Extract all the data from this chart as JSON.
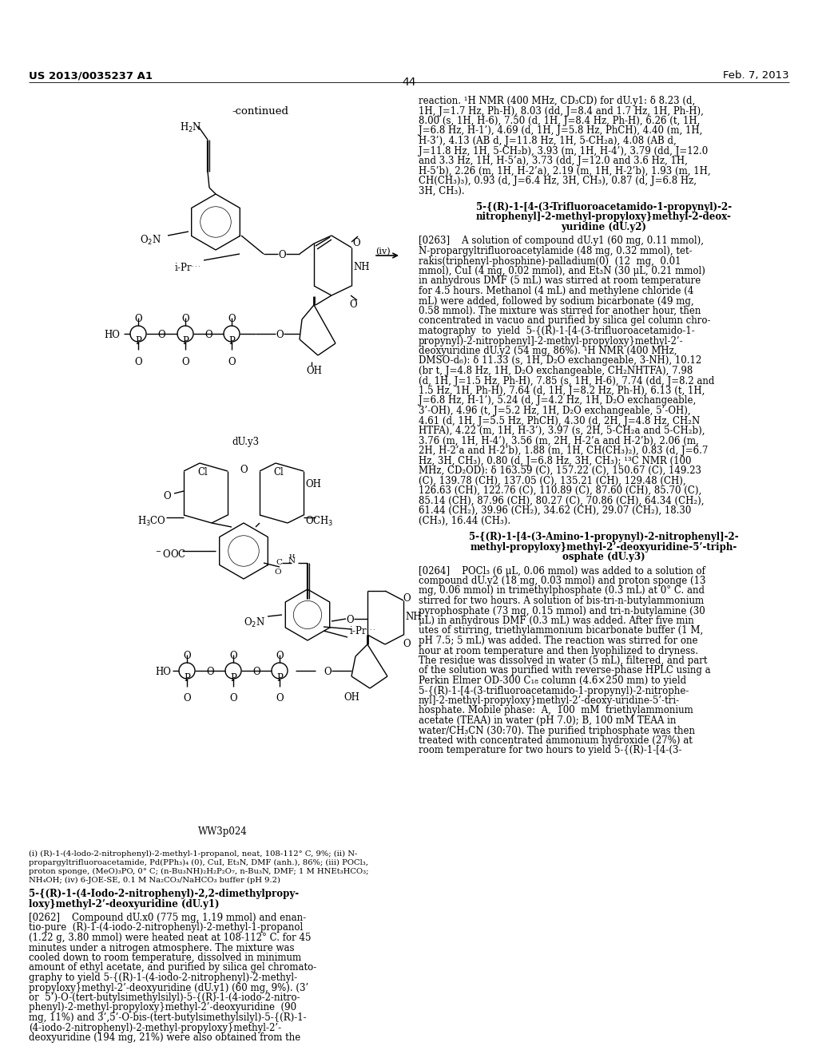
{
  "page_header_left": "US 2013/0035237 A1",
  "page_header_right": "Feb. 7, 2013",
  "page_number": "44",
  "continued_label": "-continued",
  "reaction_arrow_label": "(iv)",
  "compound_label_duy3": "dU.y3",
  "compound_label_ww3p024": "WW3p024",
  "footnote_line1": "(i) (R)-1-(4-lodo-2-nitrophenyl)-2-methyl-1-propanol, neat, 108-112° C, 9%; (ii) N-",
  "footnote_line2": "propargyltrifluoroacetamide, Pd(PPh₃)₄ (0), CuI, Et₃N, DMF (anh.), 86%; (iii) POCl₃,",
  "footnote_line3": "proton sponge, (MeO)₃PO, 0° C; (n-Bu₃NH)₂H₂P₂O₇, n-Bu₃N, DMF; 1 M HNEt₃HCO₃;",
  "footnote_line4": "NH₄OH; (iv) 6-JOE-SE, 0.1 M Na₂CO₃/NaHCO₃ buffer (pH 9.2)",
  "left_section_title": "5-{(R)-1-(4-Iodo-2-nitrophenyl)-2,2-dimethylpropy-\nloxy}methyl-2’-deoxyuridine (dU.y1)",
  "left_para_0262_start": "[0262]",
  "right_col_text_top": "reaction. ¹H NMR (400 MHz, CD₃CD) for dU.y1: δ 8.23 (d, 1H, J=1.7 Hz, Ph-H), 8.03 (dd, J=8.4 and 1.7 Hz, 1H, Ph-H), 8.00 (s, 1H, H-6), 7.50 (d, 1H, J=8.4 Hz, Ph-H), 6.26 (t, 1H, J=6.8 Hz, H-1’), 4.69 (d, 1H, J=5.8 Hz, PhCH), 4.40 (m, 1H, H-3’), 4.13 (AB d, J=11.8 Hz, 1H, 5-CH₂a), 4.08 (AB d, J=11.8 Hz, 1H, 5-CH₂b), 3.93 (m, 1H, H-4’), 3.79 (dd, J=12.0 and 3.3 Hz, 1H, H-5’a), 3.73 (dd, J=12.0 and 3.6 Hz, 1H, H-5’b), 2.26 (m, 1H, H-2’a), 2.19 (m, 1H, H-2’b), 1.93 (m, 1H, CH(CH₃)₃), 0.93 (d, J=6.4 Hz, 3H, CH₃), 0.87 (d, J=6.8 Hz, 3H, CH₃).",
  "right_section_title_1a": "5-{(R)-1-[4-(3-Trifluoroacetamido-1-propynyl)-2-",
  "right_section_title_1b": "nitrophenyl]-2-methyl-propyloxy}methyl-2-deox-",
  "right_section_title_1c": "yuridine (dU.y2)",
  "right_para_0263": "[0263]    A solution of compound dU.y1 (60 mg, 0.11 mmol), N-propargyltrifluoroacetylamide (48 mg, 0.32 mmol), tet-rakis(triphenyl-phosphine)-palladium(0)  (12  mg,  0.01 mmol), CuI (4 mg, 0.02 mmol), and Et₃N (30 μL, 0.21 mmol) in anhydrous DMF (5 mL) was stirred at room temperature for 4.5 hours. Methanol (4 mL) and methylene chloride (4 mL) were added, followed by sodium bicarbonate (49 mg, 0.58 mmol). The mixture was stirred for another hour, then concentrated in vacuo and purified by silica gel column chro-matography  to  yield  5-{(R)-1-[4-(3-trifluoroacetamido-1-propynyl)-2-nitrophenyl]-2-methyl-propyloxy}methyl-2’-deoxyuridine dU.y2 (54 mg, 86%). ¹H NMR (400 MHz, DMSO-d₆): δ 11.33 (s, 1H, D₂O exchangeable, 3-NH), 10.12 (br t, J=4.8 Hz, 1H, D₂O exchangeable, CH₂NHTFA), 7.98 (d, 1H, J=1.5 Hz, Ph-H), 7.85 (s, 1H, H-6), 7.74 (dd, J=8.2 and 1.5 Hz, 1H, Ph-H), 7.64 (d, 1H, J=8.2 Hz, Ph-H), 6.13 (t, 1H, J=6.8 Hz, H-1’), 5.24 (d, J=4.2 Hz, 1H, D₂O exchangeable, 3’-OH), 4.96 (t, J=5.2 Hz, 1H, D₂O exchangeable, 5’-OH), 4.61 (d, 1H, J=5.5 Hz, PhCH), 4.30 (d, 2H, J=4.8 Hz, CH₂N HTFA), 4.22 (m, 1H, H-3’), 3.97 (s, 2H, 5-CH₂a and 5-CH₂b), 3.76 (m, 1H, H-4’), 3.56 (m, 2H, H-2’a and H-2’b), 1.88 (m, 1H, CH(CH₃)₂), 0.83 (d, J=6.7 Hz, 3H, CH₃), 0.80 (d, J=6.8 Hz, 3H, CH₃); ¹³C NMR (100 MHz, CD₂OD): δ 163.59 (C), 157.22 (C), 150.67 (C), 149.23 (C), 139.78 (CH), 137.05 (C), 135.21 (CH), 129.48 (CH), 126.63 (CH), 122.76 (C), 110.89 (C), 87.60 (CH), 85.70 (C), 85.14 (CH), 87.96 (CH), 80.27 (C), 70.86 (CH), 64.34 (CH₂), 61.44 (CH₂), 39.96 (CH₂), 34.62 (CH), 29.07 (CH₂), 18.30 (CH₃), 16.44 (CH₃).",
  "right_section_title_2a": "5-{(R)-1-[4-(3-Amino-1-propynyl)-2-nitrophenyl]-2-",
  "right_section_title_2b": "methyl-propyloxy}methyl-2’-deoxyuridine-5’-triph-",
  "right_section_title_2c": "osphate (dU.y3)",
  "right_para_0264": "[0264]    POCl₃ (6 μL, 0.06 mmol) was added to a solution of compound dU.y2 (18 mg, 0.03 mmol) and proton sponge (13 mg, 0.06 mmol) in trimethylphosphate (0.3 mL) at 0° C. and stirred for two hours. A solution of bis-tri-n-butylammonium pyrophosphate (73 mg, 0.15 mmol) and tri-n-butylamine (30 μL) in anhydrous DMF (0.3 mL) was added. After five min utes of stirring, triethylammonium bicarbonate buffer (1 M, pH 7.5; 5 mL) was added. The reaction was stirred for one hour at room temperature and then lyophilized to dryness. The residue was dissolved in water (5 mL), filtered, and part of the solution was purified with reverse-phase HPLC using a Perkin Elmer OD-300 C₁₈ column (4.6×250 mm) to yield 5-{(R)-1-[4-(3-trifluoroacetamido-1-propynyl)-2-nitrophe-nyl]-2-methyl-propyloxy}methyl-2’-deoxy-uridine-5’-tri-hosphate. Mobile phase:  A,  100  mM  triethylammonium acetate (TEAA) in water (pH 7.0); B, 100 mM TEAA in water/CH₃CN (30:70). The purified triphosphate was then treated with concentrated ammonium hydroxide (27%) at room temperature for two hours to yield 5-{(R)-1-[4-(3-",
  "bg_color": "#ffffff"
}
